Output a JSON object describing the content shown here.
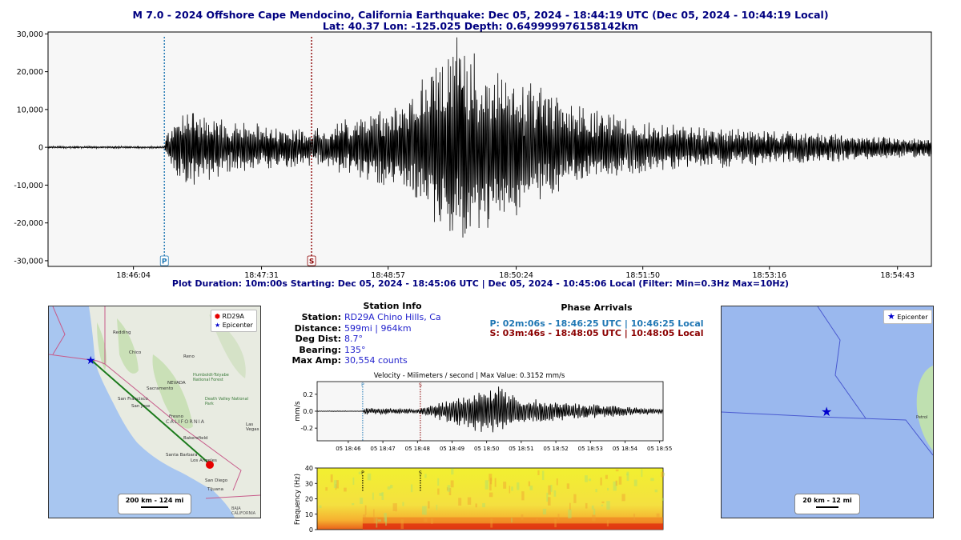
{
  "header": {
    "title_line1": "M 7.0 - 2024 Offshore Cape Mendocino, California Earthquake:  Dec 05, 2024 - 18:44:19 UTC (Dec 05, 2024 - 10:44:19 Local)",
    "title_line2": "Lat: 40.37 Lon: -125.025 Depth: 0.649999976158142km"
  },
  "plot_info": "Plot Duration: 10m:00s  Starting: Dec 05, 2024 - 18:45:06 UTC | Dec 05, 2024 - 10:45:06 Local   (Filter:  Min=0.3Hz  Max=10Hz)",
  "station_info": {
    "heading": "Station Info",
    "rows": [
      {
        "key": "Station:",
        "value": "RD29A Chino Hills, Ca"
      },
      {
        "key": "Distance:",
        "value": "599mi | 964km"
      },
      {
        "key": "Deg Dist:",
        "value": "8.7°"
      },
      {
        "key": "Bearing:",
        "value": "135°"
      },
      {
        "key": "Max Amp:",
        "value": "30,554 counts"
      }
    ]
  },
  "phase_arrivals": {
    "heading": "Phase Arrivals",
    "p": "P: 02m:06s - 18:46:25 UTC | 10:46:25 Local",
    "s": "S: 03m:46s - 18:48:05 UTC | 10:48:05 Local",
    "p_color": "#1f77b4",
    "s_color": "#8b0000"
  },
  "map_left": {
    "legend": [
      "RD29A",
      "Epicenter"
    ],
    "scale": "200 km - 124 mi",
    "labels": [
      "NEVADA",
      "Sacramento",
      "San Francisco",
      "San Jose",
      "CALIFORNIA",
      "Fresno",
      "Las Vegas",
      "Los Angeles",
      "San Diego",
      "Tijuana",
      "BAJA CALIFORNIA",
      "Reno",
      "Humboldt-Toiyabe National Forest",
      "Death Valley National Park",
      "Redding",
      "Bakersfield",
      "Santa Barbara",
      "Chico"
    ]
  },
  "map_right": {
    "legend": [
      "Epicenter"
    ],
    "scale": "20 km - 12 mi",
    "labels": [
      "Petrol"
    ]
  },
  "chart_data": [
    {
      "type": "line",
      "title": "",
      "xlabel": "",
      "ylabel": "",
      "x_ticks": [
        "18:46:04",
        "18:47:31",
        "18:48:57",
        "18:50:24",
        "18:51:50",
        "18:53:16",
        "18:54:43"
      ],
      "y_ticks": [
        "30,000",
        "20,000",
        "10,000",
        "0",
        "-10,000",
        "-20,000",
        "-30,000"
      ],
      "ylim": [
        -31500,
        30500
      ],
      "xlim": [
        "18:45:06",
        "18:55:06"
      ],
      "series": [
        {
          "values_envelope": [
            {
              "t": "18:45:06",
              "max": 300,
              "min": -300
            },
            {
              "t": "18:46:25",
              "max": 300,
              "min": -300
            },
            {
              "t": "18:46:27",
              "max": 4000,
              "min": -4000
            },
            {
              "t": "18:46:40",
              "max": 11000,
              "min": -12000
            },
            {
              "t": "18:47:10",
              "max": 7000,
              "min": -7000
            },
            {
              "t": "18:48:05",
              "max": 5000,
              "min": -5000
            },
            {
              "t": "18:49:10",
              "max": 12000,
              "min": -12000
            },
            {
              "t": "18:49:40",
              "max": 30554,
              "min": -28000
            },
            {
              "t": "18:50:30",
              "max": 18000,
              "min": -18000
            },
            {
              "t": "18:51:00",
              "max": 12000,
              "min": -10000
            },
            {
              "t": "18:52:00",
              "max": 6500,
              "min": -6500
            },
            {
              "t": "18:53:30",
              "max": 4500,
              "min": -4500
            },
            {
              "t": "18:55:06",
              "max": 2500,
              "min": -2500
            }
          ]
        }
      ],
      "markers": [
        {
          "label": "P",
          "time": "18:46:25",
          "color": "#1f77b4"
        },
        {
          "label": "S",
          "time": "18:48:05",
          "color": "#8b0000"
        }
      ]
    },
    {
      "type": "line",
      "title": "Velocity - Milimeters / second | Max Value: 0.3152 mm/s",
      "ylabel": "mm/s",
      "xlabel": "",
      "x_ticks": [
        "05 18:46",
        "05 18:47",
        "05 18:48",
        "05 18:49",
        "05 18:50",
        "05 18:51",
        "05 18:52",
        "05 18:53",
        "05 18:54",
        "05 18:55"
      ],
      "y_ticks": [
        "0.2",
        "0.0",
        "-0.2"
      ],
      "ylim": [
        -0.35,
        0.35
      ],
      "xlim": [
        "18:45:06",
        "18:55:06"
      ],
      "series": [
        {
          "values_envelope": [
            {
              "t": "18:45:06",
              "max": 0.003,
              "min": -0.003
            },
            {
              "t": "18:46:25",
              "max": 0.003,
              "min": -0.003
            },
            {
              "t": "18:46:30",
              "max": 0.04,
              "min": -0.04
            },
            {
              "t": "18:48:05",
              "max": 0.03,
              "min": -0.03
            },
            {
              "t": "18:48:45",
              "max": 0.12,
              "min": -0.12
            },
            {
              "t": "18:49:40",
              "max": 0.2,
              "min": -0.25
            },
            {
              "t": "18:50:15",
              "max": 0.3152,
              "min": -0.28
            },
            {
              "t": "18:51:00",
              "max": 0.18,
              "min": -0.16
            },
            {
              "t": "18:52:30",
              "max": 0.1,
              "min": -0.1
            },
            {
              "t": "18:55:06",
              "max": 0.03,
              "min": -0.03
            }
          ]
        }
      ],
      "markers": [
        {
          "label": "P",
          "time": "18:46:25",
          "color": "#1f77b4"
        },
        {
          "label": "S",
          "time": "18:48:05",
          "color": "#8b0000"
        }
      ]
    },
    {
      "type": "heatmap",
      "title": "",
      "ylabel": "Frequency (Hz)",
      "xlabel": "",
      "y_ticks": [
        "40",
        "30",
        "20",
        "10",
        "0"
      ],
      "ylim": [
        0,
        40
      ],
      "markers": [
        {
          "label": "P",
          "time": "18:46:25"
        },
        {
          "label": "S",
          "time": "18:48:05"
        }
      ]
    }
  ]
}
